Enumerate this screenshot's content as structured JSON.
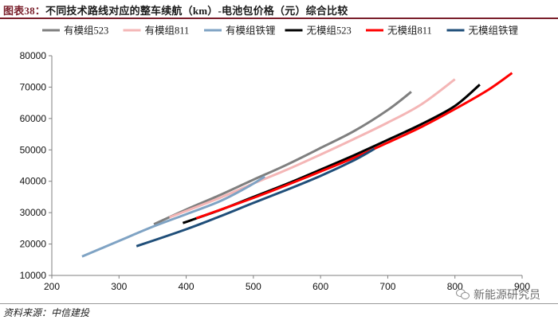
{
  "header": {
    "label": "图表38：",
    "text": "不同技术路线对应的整车续航（km）-电池包价格（元）综合比较"
  },
  "source": "资料来源：中信建投",
  "watermark": "新能源研究员",
  "chart_data": {
    "type": "line",
    "xlabel": "",
    "ylabel": "",
    "xlim": [
      200,
      900
    ],
    "ylim": [
      10000,
      80000
    ],
    "xticks": [
      "200",
      "300",
      "400",
      "500",
      "600",
      "700",
      "800",
      "900"
    ],
    "yticks": [
      "10000",
      "20000",
      "30000",
      "40000",
      "50000",
      "60000",
      "70000",
      "80000"
    ],
    "grid": false,
    "legend_position": "top",
    "series": [
      {
        "name": "有模组523",
        "color": "#7f7f7f",
        "points": [
          [
            352,
            26300
          ],
          [
            400,
            31000
          ],
          [
            450,
            35600
          ],
          [
            500,
            40500
          ],
          [
            550,
            45300
          ],
          [
            600,
            50600
          ],
          [
            650,
            56000
          ],
          [
            700,
            62700
          ],
          [
            735,
            68500
          ]
        ]
      },
      {
        "name": "有模组811",
        "color": "#f4b6b6",
        "points": [
          [
            375,
            28500
          ],
          [
            450,
            34700
          ],
          [
            500,
            39300
          ],
          [
            550,
            43700
          ],
          [
            600,
            48500
          ],
          [
            650,
            53500
          ],
          [
            700,
            58700
          ],
          [
            750,
            64500
          ],
          [
            800,
            72500
          ]
        ]
      },
      {
        "name": "有模组铁锂",
        "color": "#7fa3c4",
        "points": [
          [
            245,
            16000
          ],
          [
            300,
            21000
          ],
          [
            350,
            25500
          ],
          [
            400,
            29500
          ],
          [
            450,
            33600
          ],
          [
            490,
            38000
          ],
          [
            517,
            41500
          ]
        ]
      },
      {
        "name": "无模组523",
        "color": "#000000",
        "points": [
          [
            395,
            26700
          ],
          [
            450,
            30800
          ],
          [
            500,
            35000
          ],
          [
            550,
            39200
          ],
          [
            600,
            43700
          ],
          [
            650,
            48300
          ],
          [
            700,
            53200
          ],
          [
            750,
            58200
          ],
          [
            800,
            64000
          ],
          [
            837,
            70800
          ]
        ]
      },
      {
        "name": "无模组811",
        "color": "#ff0000",
        "points": [
          [
            415,
            28200
          ],
          [
            500,
            34700
          ],
          [
            550,
            38800
          ],
          [
            600,
            43100
          ],
          [
            650,
            47500
          ],
          [
            700,
            52300
          ],
          [
            750,
            57300
          ],
          [
            800,
            63000
          ],
          [
            850,
            69200
          ],
          [
            885,
            74500
          ]
        ]
      },
      {
        "name": "无模组铁锂",
        "color": "#1f4e79",
        "points": [
          [
            326,
            19300
          ],
          [
            400,
            24700
          ],
          [
            450,
            28800
          ],
          [
            500,
            33100
          ],
          [
            550,
            37300
          ],
          [
            600,
            41700
          ],
          [
            650,
            46700
          ],
          [
            680,
            50300
          ]
        ]
      }
    ]
  }
}
